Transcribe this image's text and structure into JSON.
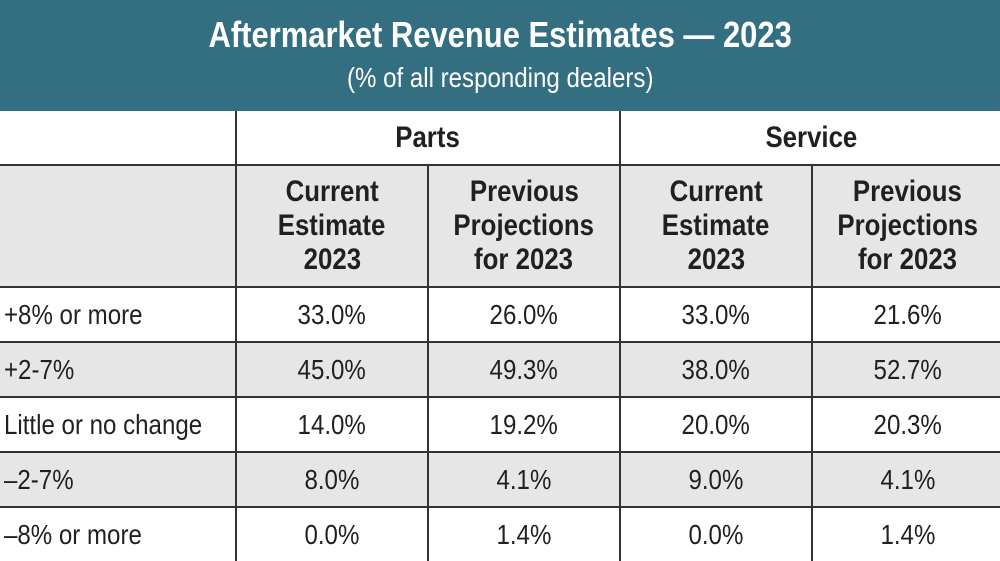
{
  "header": {
    "title": "Aftermarket Revenue Estimates — 2023",
    "subtitle": "(% of all responding dealers)",
    "band_color": "#336f80",
    "stripe_color": "#e6e6e7"
  },
  "chart_data": {
    "type": "table",
    "groups": [
      "Parts",
      "Service"
    ],
    "columns": [
      "Current Estimate 2023",
      "Previous Projections for 2023",
      "Current Estimate 2023",
      "Previous Projections for 2023"
    ],
    "column_lines": [
      [
        "Current",
        "Estimate",
        "2023"
      ],
      [
        "Previous",
        "Projections",
        "for 2023"
      ],
      [
        "Current",
        "Estimate",
        "2023"
      ],
      [
        "Previous",
        "Projections",
        "for 2023"
      ]
    ],
    "rows": [
      {
        "label": "+8% or more",
        "values": [
          "33.0%",
          "26.0%",
          "33.0%",
          "21.6%"
        ]
      },
      {
        "label": "+2-7%",
        "values": [
          "45.0%",
          "49.3%",
          "38.0%",
          "52.7%"
        ]
      },
      {
        "label": "Little or no change",
        "values": [
          "14.0%",
          "19.2%",
          "20.0%",
          "20.3%"
        ]
      },
      {
        "label": "–2-7%",
        "values": [
          "8.0%",
          "4.1%",
          "9.0%",
          "4.1%"
        ]
      },
      {
        "label": "–8% or more",
        "values": [
          "0.0%",
          "1.4%",
          "0.0%",
          "1.4%"
        ]
      }
    ]
  }
}
